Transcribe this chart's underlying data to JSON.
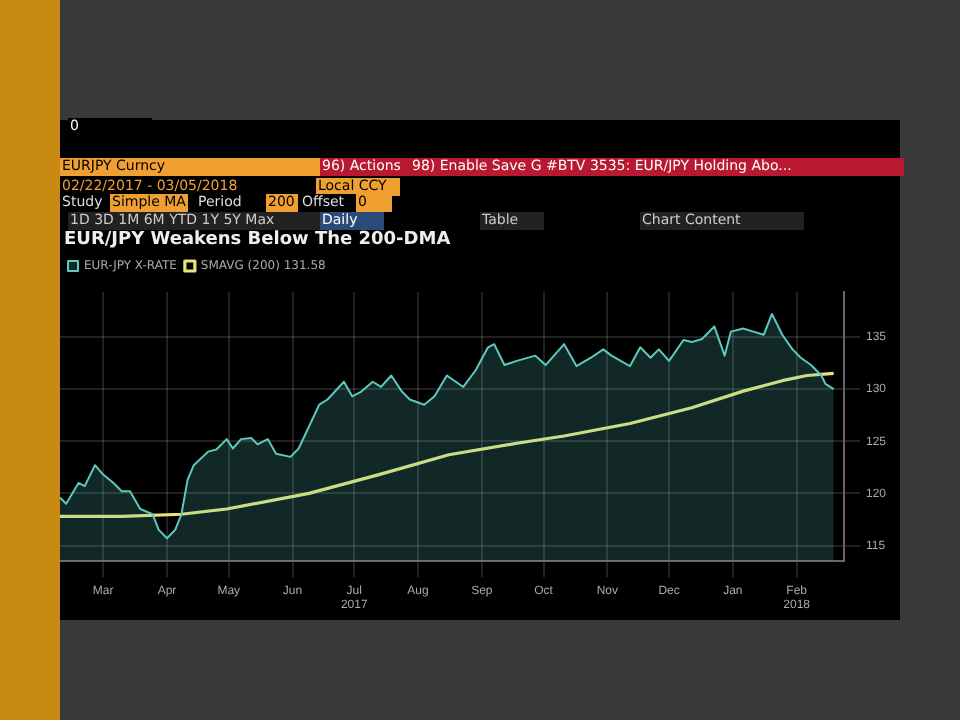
{
  "chart_data": {
    "type": "area",
    "title": "EUR/JPY Weakens Below The 200-DMA",
    "annotations": [
      "0",
      "EURJPY Curncy",
      "96) Actions",
      "98) Enable Save G #BTV 3535: EUR/JPY Holding Abo...",
      "02/22/2017 - 03/05/2018",
      "Local CCY",
      "Study",
      "Simple MA",
      "Period",
      "200",
      "Offset",
      "0",
      "1D 3D 1M 6M YTD 1Y 5Y Max",
      "Daily",
      "Table",
      "Chart Content"
    ],
    "series": [
      {
        "name": "EUR-JPY X-RATE",
        "color": "#5cc9c0",
        "x": [
          "2017-02-22",
          "2017-02-25",
          "2017-03-03",
          "2017-03-06",
          "2017-03-11",
          "2017-03-15",
          "2017-03-20",
          "2017-03-24",
          "2017-03-28",
          "2017-04-02",
          "2017-04-08",
          "2017-04-11",
          "2017-04-15",
          "2017-04-19",
          "2017-04-22",
          "2017-04-25",
          "2017-04-28",
          "2017-05-05",
          "2017-05-09",
          "2017-05-14",
          "2017-05-17",
          "2017-05-21",
          "2017-05-26",
          "2017-05-29",
          "2017-06-03",
          "2017-06-07",
          "2017-06-14",
          "2017-06-18",
          "2017-06-28",
          "2017-07-02",
          "2017-07-10",
          "2017-07-14",
          "2017-07-18",
          "2017-07-24",
          "2017-07-28",
          "2017-08-02",
          "2017-08-07",
          "2017-08-11",
          "2017-08-18",
          "2017-08-23",
          "2017-08-29",
          "2017-09-06",
          "2017-09-12",
          "2017-09-18",
          "2017-09-21",
          "2017-09-26",
          "2017-10-02",
          "2017-10-11",
          "2017-10-16",
          "2017-10-25",
          "2017-10-31",
          "2017-11-07",
          "2017-11-13",
          "2017-11-17",
          "2017-11-26",
          "2017-12-01",
          "2017-12-06",
          "2017-12-10",
          "2017-12-15",
          "2017-12-22",
          "2017-12-26",
          "2017-12-31",
          "2018-01-06",
          "2018-01-11",
          "2018-01-14",
          "2018-01-20",
          "2018-01-25",
          "2018-01-30",
          "2018-02-03",
          "2018-02-08",
          "2018-02-13",
          "2018-02-17",
          "2018-02-22",
          "2018-02-27",
          "2018-03-01",
          "2018-03-05"
        ],
        "values": [
          119.6,
          119.0,
          121.0,
          120.7,
          122.7,
          121.8,
          121.0,
          120.2,
          120.2,
          118.5,
          118.0,
          116.5,
          115.7,
          116.5,
          118.0,
          121.3,
          122.7,
          124.0,
          124.2,
          125.2,
          124.3,
          125.2,
          125.3,
          124.7,
          125.2,
          123.8,
          123.5,
          124.3,
          128.5,
          129.0,
          130.7,
          129.3,
          129.7,
          130.7,
          130.2,
          131.3,
          129.8,
          129.0,
          128.5,
          129.3,
          131.3,
          130.2,
          131.8,
          134.0,
          134.3,
          132.3,
          132.7,
          133.2,
          132.3,
          134.3,
          132.2,
          133.0,
          133.8,
          133.2,
          132.2,
          134.0,
          133.0,
          133.8,
          132.7,
          134.7,
          134.5,
          134.8,
          136.0,
          133.2,
          135.5,
          135.8,
          135.5,
          135.2,
          137.2,
          135.2,
          133.8,
          133.0,
          132.3,
          131.3,
          130.5,
          130.0
        ]
      },
      {
        "name": "SMAVG (200) 131.58",
        "type": "line",
        "color": "#e8e27a",
        "x": [
          "2017-02-22",
          "2017-03-24",
          "2017-04-22",
          "2017-05-14",
          "2017-06-23",
          "2017-07-27",
          "2017-08-30",
          "2017-10-02",
          "2017-10-25",
          "2017-11-26",
          "2017-12-26",
          "2018-01-20",
          "2018-02-08",
          "2018-02-20",
          "2018-03-05"
        ],
        "values": [
          117.8,
          117.8,
          118.0,
          118.5,
          120.0,
          121.8,
          123.7,
          124.8,
          125.5,
          126.7,
          128.2,
          129.8,
          130.8,
          131.3,
          131.5
        ]
      }
    ],
    "xlim": [
      "2017-02-22",
      "2018-03-10"
    ],
    "xticks": [
      {
        "value": "2017-03-15",
        "label": "Mar"
      },
      {
        "value": "2017-04-15",
        "label": "Apr"
      },
      {
        "value": "2017-05-15",
        "label": "May"
      },
      {
        "value": "2017-06-15",
        "label": "Jun"
      },
      {
        "value": "2017-07-15",
        "label": "Jul\n2017"
      },
      {
        "value": "2017-08-15",
        "label": "Aug"
      },
      {
        "value": "2017-09-15",
        "label": "Sep"
      },
      {
        "value": "2017-10-15",
        "label": "Oct"
      },
      {
        "value": "2017-11-15",
        "label": "Nov"
      },
      {
        "value": "2017-12-15",
        "label": "Dec"
      },
      {
        "value": "2018-01-15",
        "label": "Jan"
      },
      {
        "value": "2018-02-15",
        "label": "Feb\n2018"
      }
    ],
    "ylim": [
      113.5,
      139.3
    ],
    "yticks": [
      115,
      120,
      125,
      130,
      135
    ],
    "grid": true,
    "legend": "top left",
    "marker": "none",
    "line_style": "solid"
  }
}
